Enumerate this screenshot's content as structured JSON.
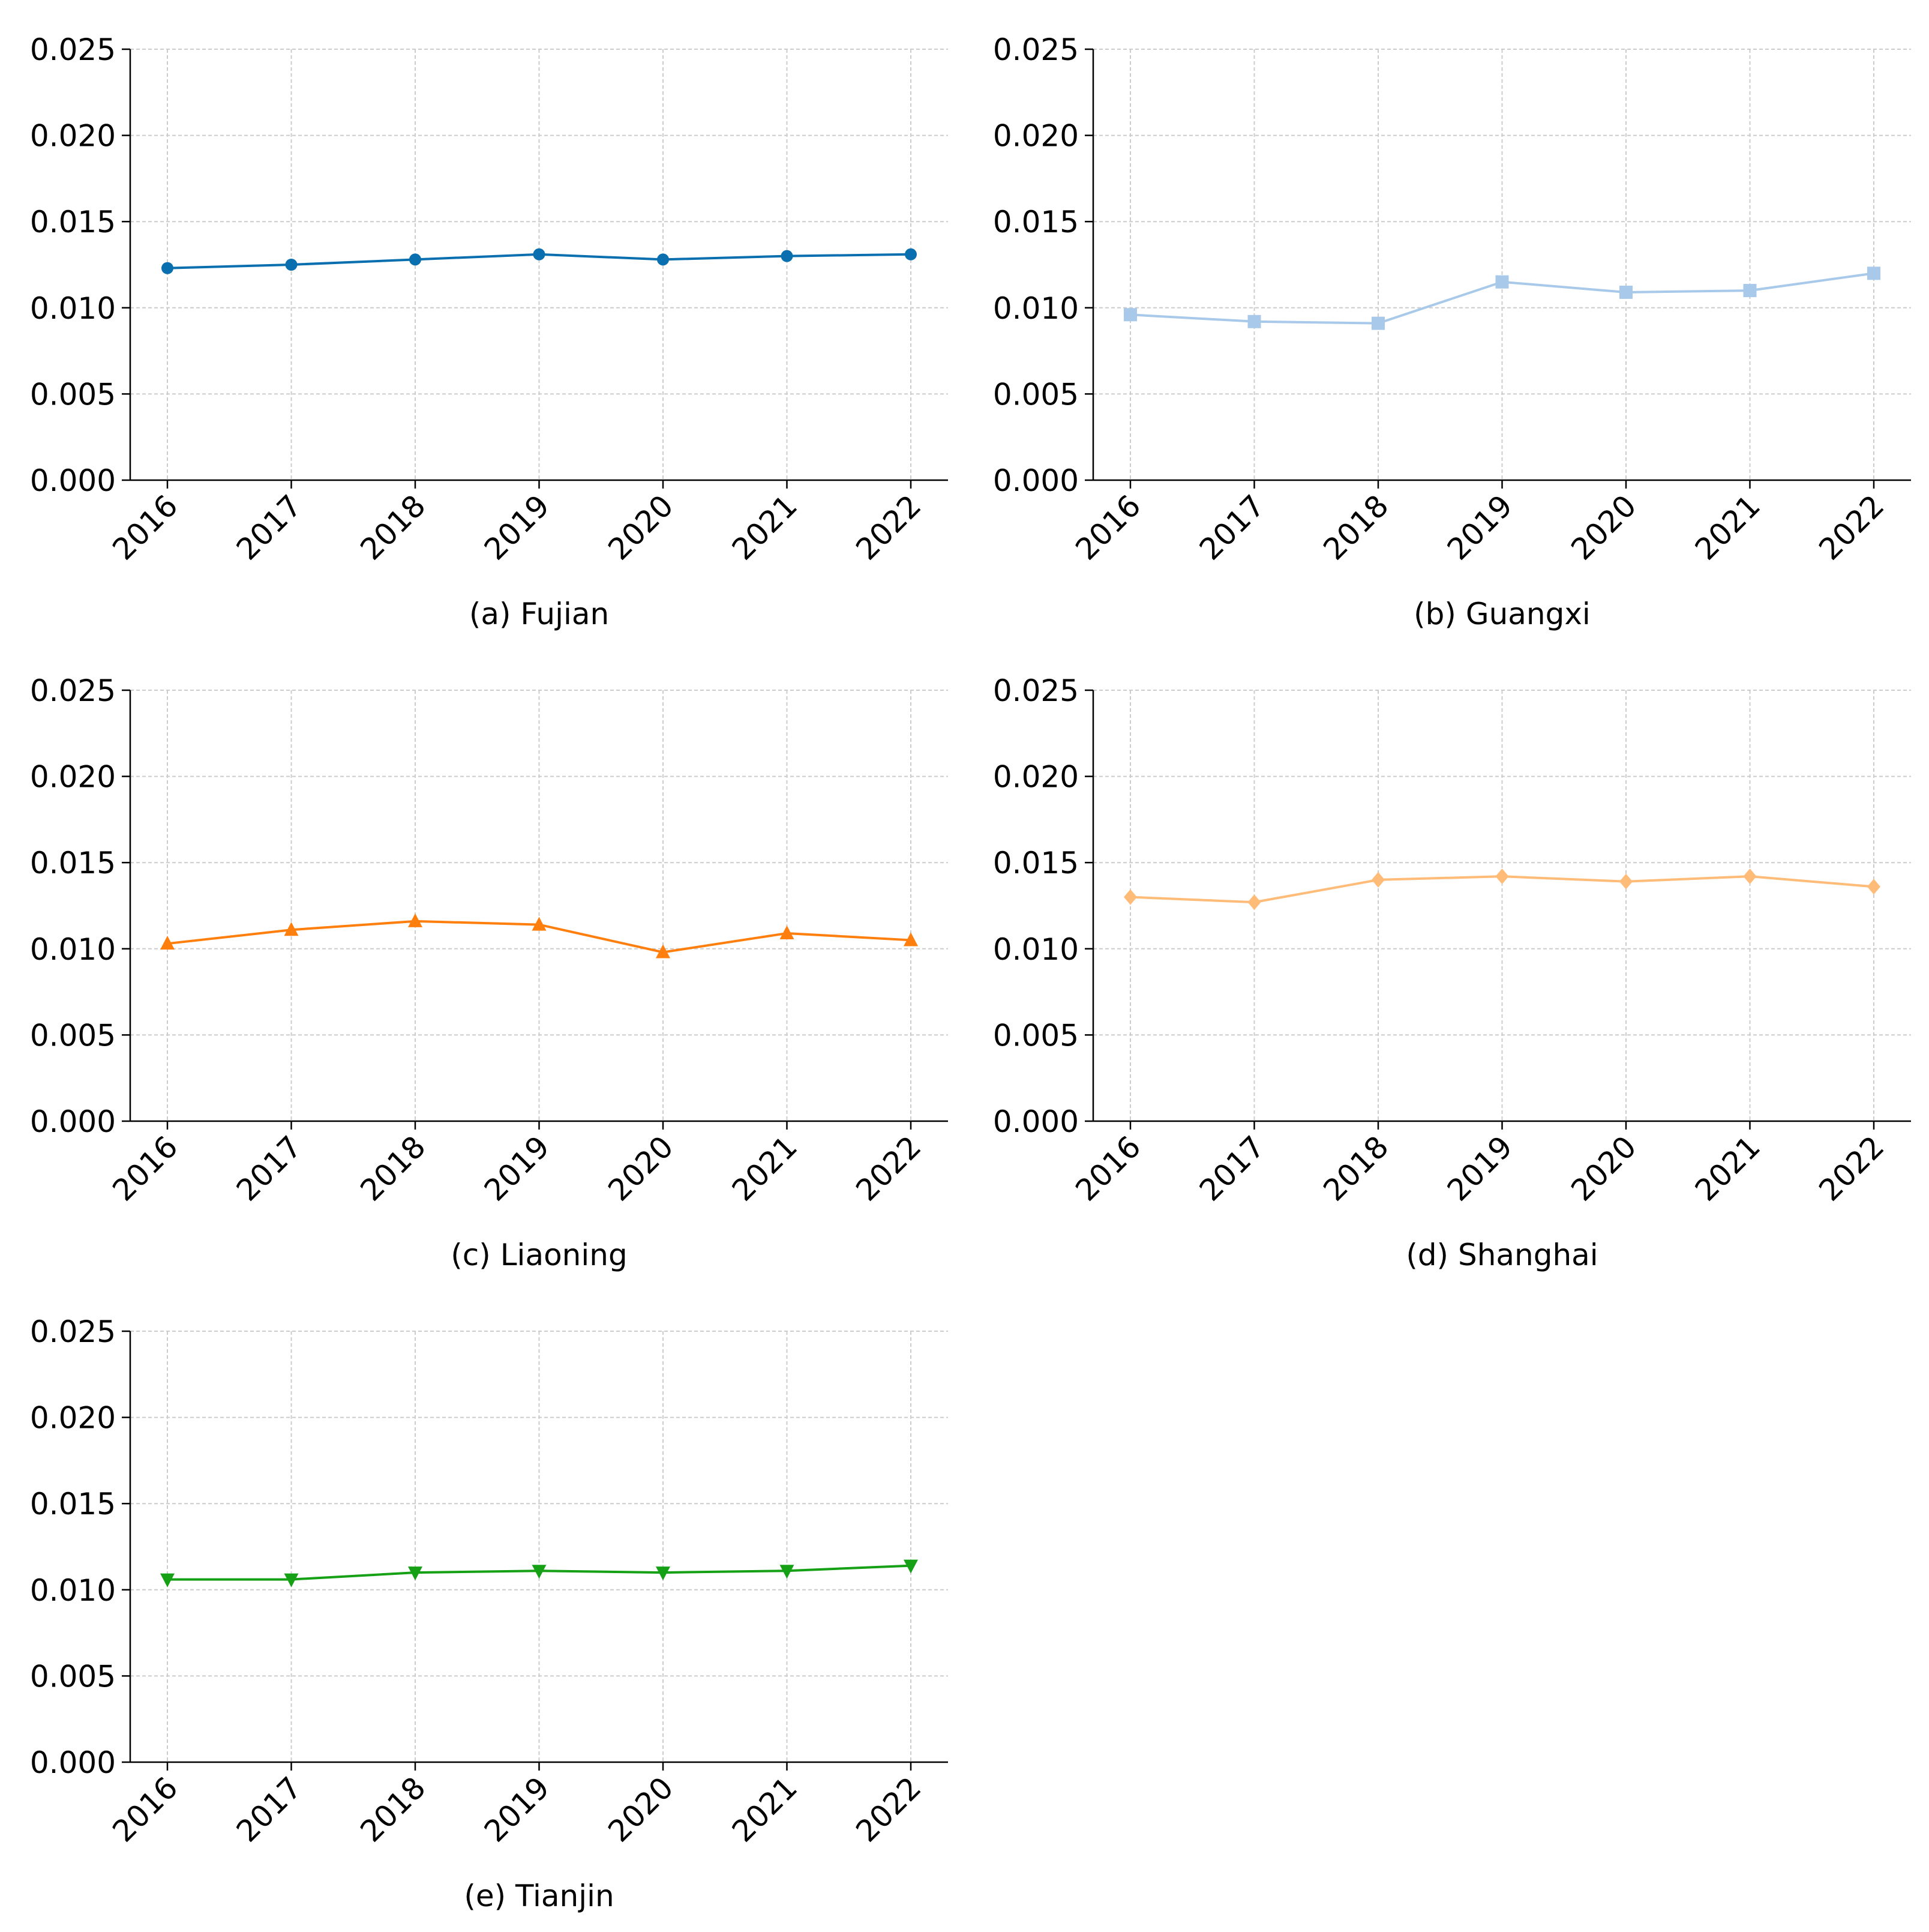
{
  "chart_data": [
    {
      "type": "line",
      "title": "(a) Fujian",
      "x": [
        "2016",
        "2017",
        "2018",
        "2019",
        "2020",
        "2021",
        "2022"
      ],
      "values": [
        0.0123,
        0.0125,
        0.0128,
        0.0131,
        0.0128,
        0.013,
        0.0131
      ],
      "ylim": [
        0,
        0.025
      ],
      "yticks": [
        "0.000",
        "0.005",
        "0.010",
        "0.015",
        "0.020",
        "0.025"
      ],
      "grid": true,
      "color": "#0a6fae",
      "marker": "circle"
    },
    {
      "type": "line",
      "title": "(b) Guangxi",
      "x": [
        "2016",
        "2017",
        "2018",
        "2019",
        "2020",
        "2021",
        "2022"
      ],
      "values": [
        0.0096,
        0.0092,
        0.0091,
        0.0115,
        0.0109,
        0.011,
        0.012
      ],
      "ylim": [
        0,
        0.025
      ],
      "yticks": [
        "0.000",
        "0.005",
        "0.010",
        "0.015",
        "0.020",
        "0.025"
      ],
      "grid": true,
      "color": "#a8c9ea",
      "marker": "square"
    },
    {
      "type": "line",
      "title": "(c) Liaoning",
      "x": [
        "2016",
        "2017",
        "2018",
        "2019",
        "2020",
        "2021",
        "2022"
      ],
      "values": [
        0.0103,
        0.0111,
        0.0116,
        0.0114,
        0.0098,
        0.0109,
        0.0105
      ],
      "ylim": [
        0,
        0.025
      ],
      "yticks": [
        "0.000",
        "0.005",
        "0.010",
        "0.015",
        "0.020",
        "0.025"
      ],
      "grid": true,
      "color": "#ff7f0e",
      "marker": "triangle-up"
    },
    {
      "type": "line",
      "title": "(d) Shanghai",
      "x": [
        "2016",
        "2017",
        "2018",
        "2019",
        "2020",
        "2021",
        "2022"
      ],
      "values": [
        0.013,
        0.0127,
        0.014,
        0.0142,
        0.0139,
        0.0142,
        0.0136
      ],
      "ylim": [
        0,
        0.025
      ],
      "yticks": [
        "0.000",
        "0.005",
        "0.010",
        "0.015",
        "0.020",
        "0.025"
      ],
      "grid": true,
      "color": "#ffbb78",
      "marker": "diamond"
    },
    {
      "type": "line",
      "title": "(e) Tianjin",
      "x": [
        "2016",
        "2017",
        "2018",
        "2019",
        "2020",
        "2021",
        "2022"
      ],
      "values": [
        0.0106,
        0.0106,
        0.011,
        0.0111,
        0.011,
        0.0111,
        0.0114
      ],
      "ylim": [
        0,
        0.025
      ],
      "yticks": [
        "0.000",
        "0.005",
        "0.010",
        "0.015",
        "0.020",
        "0.025"
      ],
      "grid": true,
      "color": "#16a016",
      "marker": "triangle-down"
    }
  ]
}
